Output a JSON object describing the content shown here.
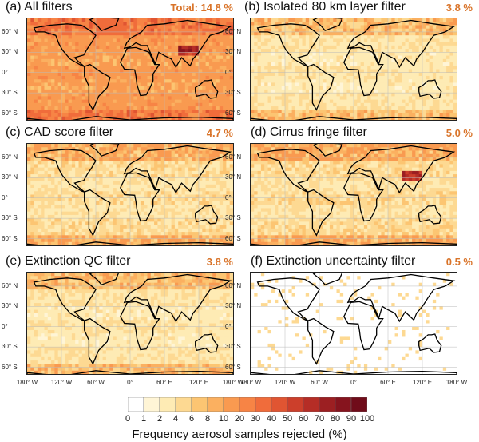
{
  "chart_data": [
    {
      "type": "heatmap",
      "panel": "a",
      "title": "(a) All filters",
      "percent_label": "Total: 14.8 %",
      "value_percent": 14.8
    },
    {
      "type": "heatmap",
      "panel": "b",
      "title": "(b) Isolated 80 km layer filter",
      "percent_label": "3.8 %",
      "value_percent": 3.8
    },
    {
      "type": "heatmap",
      "panel": "c",
      "title": "(c) CAD score filter",
      "percent_label": "4.7 %",
      "value_percent": 4.7
    },
    {
      "type": "heatmap",
      "panel": "d",
      "title": "(d) Cirrus fringe filter",
      "percent_label": "5.0 %",
      "value_percent": 5.0
    },
    {
      "type": "heatmap",
      "panel": "e",
      "title": "(e) Extinction QC filter",
      "percent_label": "3.8 %",
      "value_percent": 3.8
    },
    {
      "type": "heatmap",
      "panel": "f",
      "title": "(f) Extinction uncertainty filter",
      "percent_label": "0.5 %",
      "value_percent": 0.5
    }
  ],
  "lat_ticks": [
    "60° N",
    "30° N",
    "0°",
    "30° S",
    "60° S"
  ],
  "lon_ticks": [
    "180° W",
    "120° W",
    "60° W",
    "0°",
    "60° E",
    "120° E",
    "180° W"
  ],
  "colorbar": {
    "ticks": [
      "0",
      "1",
      "2",
      "4",
      "6",
      "8",
      "10",
      "20",
      "30",
      "40",
      "50",
      "60",
      "70",
      "80",
      "90",
      "100"
    ],
    "colors": [
      "#ffffff",
      "#fff5d6",
      "#feebb4",
      "#fdd992",
      "#fcc572",
      "#fbb060",
      "#f99a50",
      "#f78445",
      "#f06c3b",
      "#e05532",
      "#cc3f2b",
      "#b52d26",
      "#9c1f22",
      "#86141e",
      "#700c1a"
    ],
    "label": "Frequency aerosol samples rejected (%)"
  }
}
